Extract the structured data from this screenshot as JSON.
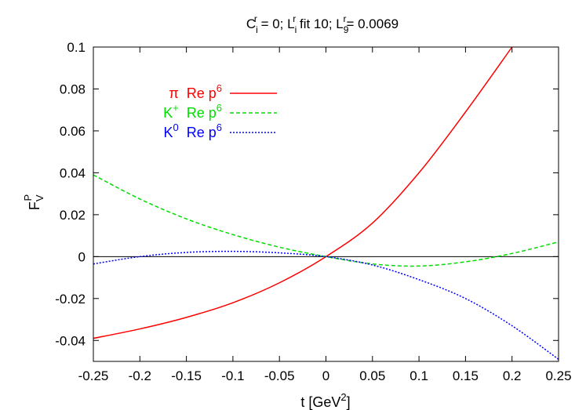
{
  "chart_data": {
    "type": "line",
    "title": "C_i^r = 0; L_i^r fit 10; L_9^r= 0.0069",
    "title_parts": {
      "c": "C",
      "c_sup": "r",
      "c_sub": "i",
      "eq1": " = 0; ",
      "l": "L",
      "l_sup": "r",
      "l_sub": "i",
      "fit": " fit 10; ",
      "l2": "L",
      "l2_sup": "r",
      "l2_sub": "9",
      "eq2": "= 0.0069"
    },
    "xlabel": "t   [GeV^2]",
    "xlabel_parts": {
      "base": "t   [GeV",
      "sup": "2",
      "end": "]"
    },
    "ylabel": "F_V^P",
    "ylabel_parts": {
      "base": "F",
      "sub": "V",
      "sup": "P"
    },
    "xlim": [
      -0.25,
      0.25
    ],
    "ylim": [
      -0.05,
      0.1
    ],
    "x_ticks": [
      -0.25,
      -0.2,
      -0.15,
      -0.1,
      -0.05,
      0,
      0.05,
      0.1,
      0.15,
      0.2,
      0.25
    ],
    "x_tick_labels": [
      "-0.25",
      "-0.2",
      "-0.15",
      "-0.1",
      "-0.05",
      "0",
      "0.05",
      "0.1",
      "0.15",
      "0.2",
      "0.25"
    ],
    "y_ticks": [
      -0.04,
      -0.02,
      0,
      0.02,
      0.04,
      0.06,
      0.08,
      0.1
    ],
    "y_tick_labels": [
      "-0.04",
      "-0.02",
      "0",
      "0.02",
      "0.04",
      "0.06",
      "0.08",
      "0.1"
    ],
    "zero_line": true,
    "grid": false,
    "legend_position": "top-left",
    "series": [
      {
        "name": "π  Re p^6",
        "label_particle": "π",
        "label_particle_sup": "",
        "label_text": "Re p",
        "label_sup": "6",
        "color": "#ff0000",
        "dash": "solid",
        "x": [
          -0.25,
          -0.2,
          -0.15,
          -0.1,
          -0.05,
          0,
          0.05,
          0.1,
          0.15,
          0.2
        ],
        "y": [
          -0.039,
          -0.0345,
          -0.029,
          -0.022,
          -0.0125,
          0,
          0.016,
          0.04,
          0.069,
          0.1
        ]
      },
      {
        "name": "K^+  Re p^6",
        "label_particle": "K",
        "label_particle_sup": "+",
        "label_text": "Re p",
        "label_sup": "6",
        "color": "#00dd00",
        "dash": "dashed",
        "x": [
          -0.25,
          -0.2,
          -0.15,
          -0.1,
          -0.05,
          0,
          0.05,
          0.1,
          0.15,
          0.2,
          0.25
        ],
        "y": [
          0.039,
          0.0275,
          0.018,
          0.0105,
          0.0045,
          0,
          -0.0035,
          -0.0045,
          -0.0025,
          0.0015,
          0.007
        ]
      },
      {
        "name": "K^0  Re p^6",
        "label_particle": "K",
        "label_particle_sup": "0",
        "label_text": "Re p",
        "label_sup": "6",
        "color": "#0000ff",
        "dash": "dotted",
        "x": [
          -0.25,
          -0.2,
          -0.15,
          -0.1,
          -0.05,
          0,
          0.05,
          0.1,
          0.15,
          0.2,
          0.25
        ],
        "y": [
          -0.0035,
          0.0,
          0.002,
          0.0025,
          0.0018,
          0,
          -0.004,
          -0.011,
          -0.02,
          -0.033,
          -0.049
        ]
      }
    ]
  }
}
